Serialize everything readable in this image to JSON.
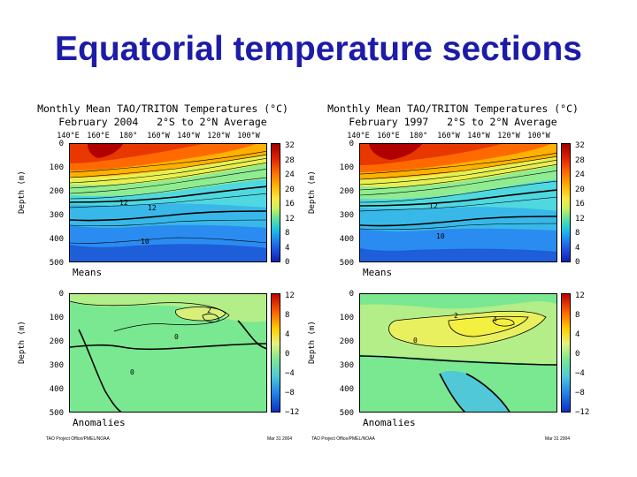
{
  "slide": {
    "title": "Equatorial temperature sections"
  },
  "panels": [
    {
      "title_line1": "Monthly Mean TAO/TRITON Temperatures (°C)",
      "title_line2": "February 2004   2°S to 2°N Average",
      "means_label": "Means",
      "anomalies_label": "Anomalies",
      "footer_left": "TAO Project Office/PMEL/NOAA",
      "footer_right": "Mar 31 2004",
      "ylabel": "Depth (m)"
    },
    {
      "title_line1": "Monthly Mean TAO/TRITON Temperatures (°C)",
      "title_line2": "February 1997   2°S to 2°N Average",
      "means_label": "Means",
      "anomalies_label": "Anomalies",
      "footer_left": "TAO Project Office/PMEL/NOAA",
      "footer_right": "Mar 31 2004",
      "ylabel": "Depth (m)"
    }
  ],
  "chart_data": [
    {
      "type": "heatmap",
      "title": "Monthly Mean TAO/TRITON Temperatures (°C) February 2004 2°S to 2°N Average",
      "x_ticks": [
        "140°E",
        "160°E",
        "180°",
        "160°W",
        "140°W",
        "120°W",
        "100°W"
      ],
      "y_ticks": [
        "0",
        "100",
        "200",
        "300",
        "400",
        "500"
      ],
      "ylabel": "Depth (m)",
      "ylim": [
        0,
        500
      ],
      "colorbar_ticks": [
        "32",
        "28",
        "24",
        "20",
        "16",
        "12",
        "8",
        "4",
        "0"
      ],
      "sublabel": "Means",
      "contour_labels": [
        "12",
        "10"
      ]
    },
    {
      "type": "heatmap",
      "title": "Monthly Mean TAO/TRITON Temperatures (°C) February 2004 2°S to 2°N Average",
      "x_ticks": [
        "140°E",
        "160°E",
        "180°",
        "160°W",
        "140°W",
        "120°W",
        "100°W"
      ],
      "y_ticks": [
        "0",
        "100",
        "200",
        "300",
        "400",
        "500"
      ],
      "ylabel": "Depth (m)",
      "ylim": [
        0,
        500
      ],
      "colorbar_ticks": [
        "12",
        "8",
        "4",
        "0",
        "−4",
        "−8",
        "−12"
      ],
      "sublabel": "Anomalies",
      "contour_labels": [
        "2",
        "0"
      ]
    },
    {
      "type": "heatmap",
      "title": "Monthly Mean TAO/TRITON Temperatures (°C) February 1997 2°S to 2°N Average",
      "x_ticks": [
        "140°E",
        "160°E",
        "180°",
        "160°W",
        "140°W",
        "120°W",
        "100°W"
      ],
      "y_ticks": [
        "0",
        "100",
        "200",
        "300",
        "400",
        "500"
      ],
      "ylabel": "Depth (m)",
      "ylim": [
        0,
        500
      ],
      "colorbar_ticks": [
        "32",
        "28",
        "24",
        "20",
        "16",
        "12",
        "8",
        "4",
        "0"
      ],
      "sublabel": "Means",
      "contour_labels": [
        "12",
        "10"
      ]
    },
    {
      "type": "heatmap",
      "title": "Monthly Mean TAO/TRITON Temperatures (°C) February 1997 2°S to 2°N Average",
      "x_ticks": [
        "140°E",
        "160°E",
        "180°",
        "160°W",
        "140°W",
        "120°W",
        "100°W"
      ],
      "y_ticks": [
        "0",
        "100",
        "200",
        "300",
        "400",
        "500"
      ],
      "ylabel": "Depth (m)",
      "ylim": [
        0,
        500
      ],
      "colorbar_ticks": [
        "12",
        "8",
        "4",
        "0",
        "−4",
        "−8",
        "−12"
      ],
      "sublabel": "Anomalies",
      "contour_labels": [
        "2",
        "4",
        "0"
      ]
    }
  ],
  "colors": {
    "title": "#1c1ca8",
    "means_scale": [
      "#a00000",
      "#e02000",
      "#ff6a00",
      "#ffb400",
      "#ffe640",
      "#c8f060",
      "#60e0a0",
      "#20c8e0",
      "#2090f0",
      "#2050e0",
      "#1020b0"
    ],
    "anom_scale": [
      "#c00000",
      "#ff6000",
      "#ffd000",
      "#e8f080",
      "#80e890",
      "#50c8d8",
      "#2080e8",
      "#1030c0"
    ]
  }
}
